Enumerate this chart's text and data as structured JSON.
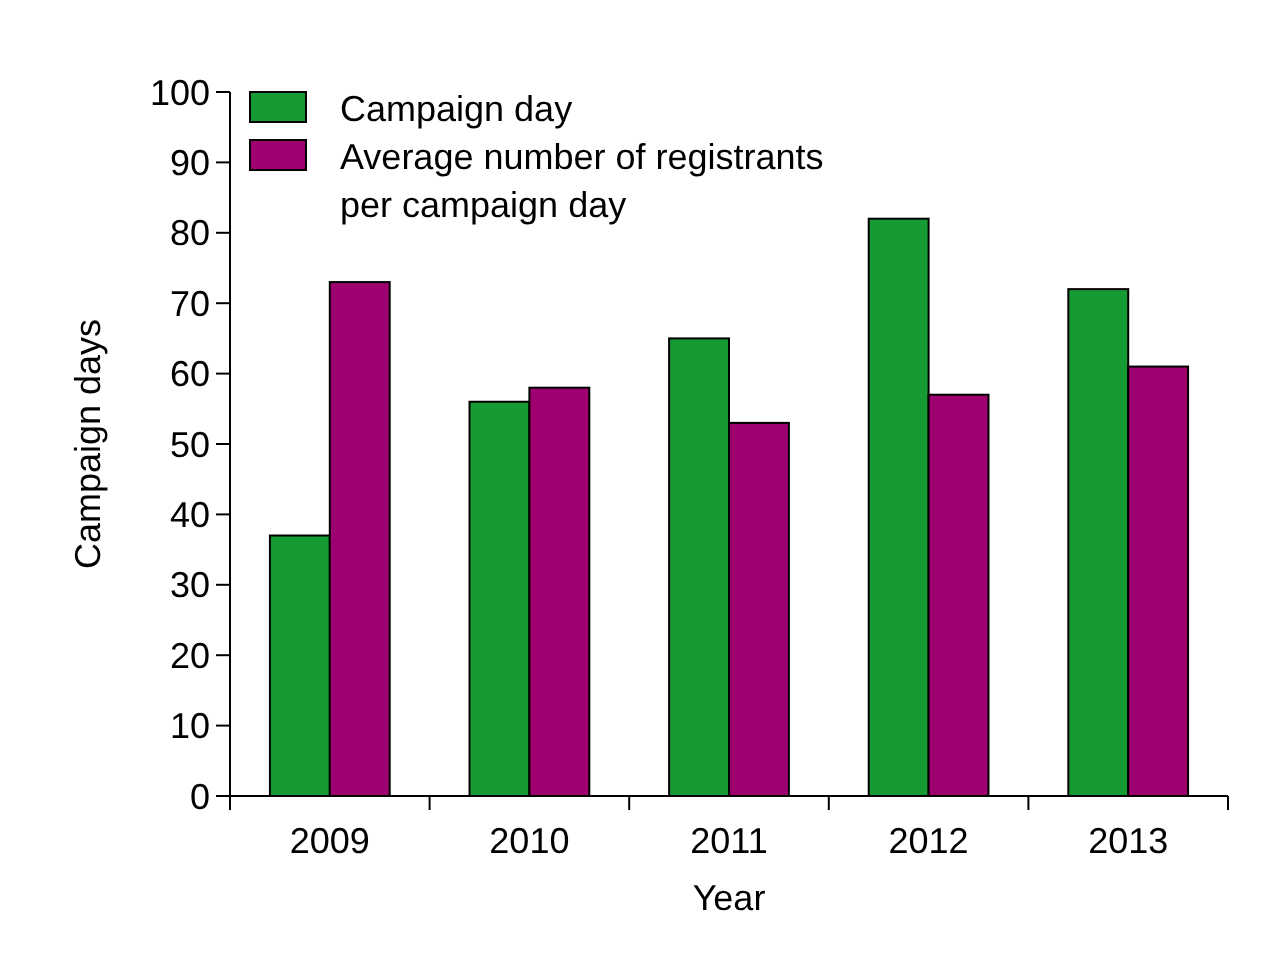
{
  "chart_data": {
    "type": "bar",
    "xlabel": "Year",
    "ylabel": "Campaign days",
    "categories": [
      "2009",
      "2010",
      "2011",
      "2012",
      "2013"
    ],
    "series": [
      {
        "name": "Campaign day",
        "color": "#169b34",
        "values": [
          37,
          56,
          65,
          82,
          72
        ]
      },
      {
        "name": "Average number of registrants per campaign day",
        "color": "#9e0070",
        "values": [
          73,
          58,
          53,
          57,
          61
        ]
      }
    ],
    "ylim": [
      0,
      100
    ],
    "yticks": [
      0,
      10,
      20,
      30,
      40,
      50,
      60,
      70,
      80,
      90,
      100
    ],
    "grid": false,
    "legend": "top left"
  }
}
